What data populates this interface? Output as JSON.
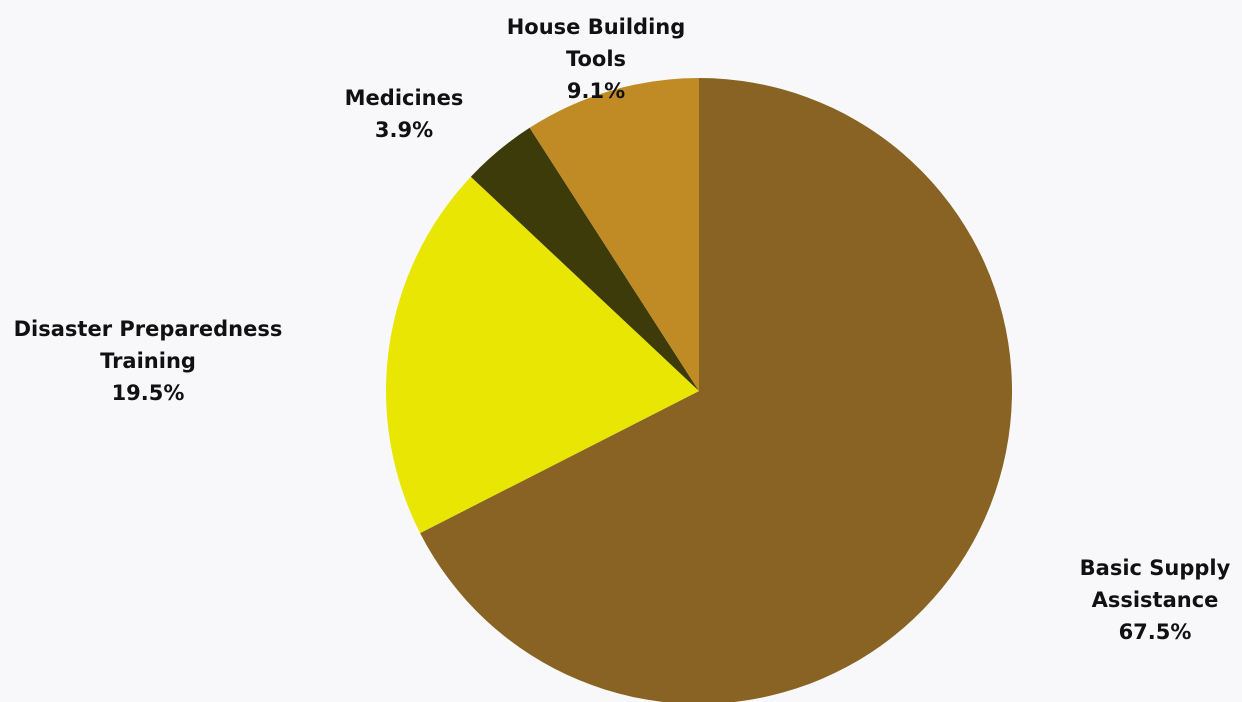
{
  "chart_data": {
    "type": "pie",
    "start_angle_deg": 0,
    "direction": "clockwise",
    "slices": [
      {
        "label_lines": [
          "Basic Supply",
          "Assistance"
        ],
        "value": 67.5,
        "value_label": "67.5%",
        "color": "#886323"
      },
      {
        "label_lines": [
          "Disaster Preparedness",
          "Training"
        ],
        "value": 19.5,
        "value_label": "19.5%",
        "color": "#e8e602"
      },
      {
        "label_lines": [
          "Medicines"
        ],
        "value": 3.9,
        "value_label": "3.9%",
        "color": "#3d3b0a"
      },
      {
        "label_lines": [
          "House Building",
          "Tools"
        ],
        "value": 9.1,
        "value_label": "9.1%",
        "color": "#c08b25"
      }
    ],
    "legend": "none"
  }
}
